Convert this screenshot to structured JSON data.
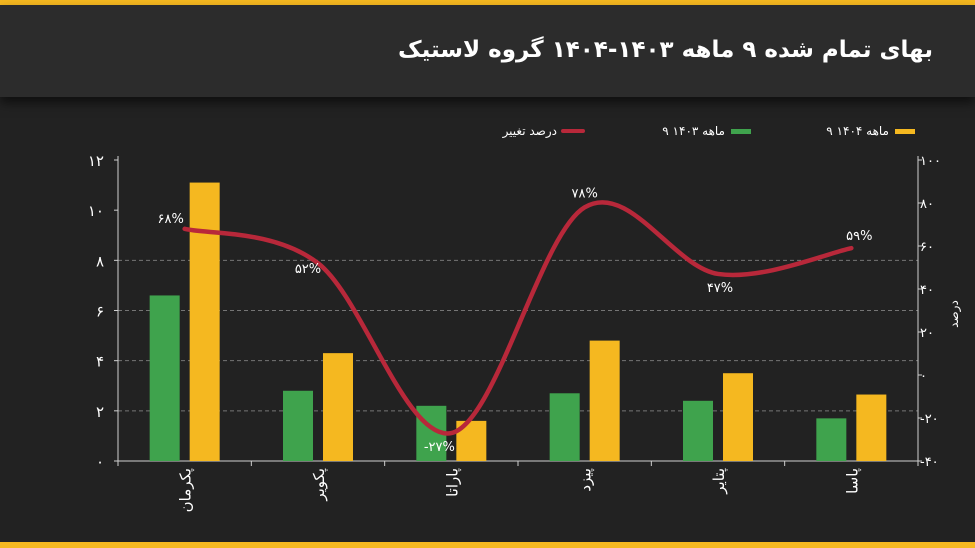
{
  "header": {
    "title": "بهای تمام شده ۹ ماهه ۱۴۰۳-۱۴۰۴ گروه لاستیک"
  },
  "colors": {
    "bar_1403": "#3fa34d",
    "bar_1404": "#f5b820",
    "line": "#b8283a",
    "background": "#222222",
    "header": "#2c2c2c"
  },
  "chart_data": {
    "type": "bar",
    "title": "بهای تمام شده ۹ ماهه ۱۴۰۳-۱۴۰۴ گروه لاستیک",
    "categories": [
      "پکرمان",
      "پکویر",
      "پاراتا",
      "پیزد",
      "پتایر",
      "پاسا"
    ],
    "series": [
      {
        "name": "۹ ماهه ۱۴۰۳",
        "type": "bar",
        "axis": "left",
        "values": [
          6.6,
          2.8,
          2.2,
          2.7,
          2.4,
          1.7
        ]
      },
      {
        "name": "۹ ماهه ۱۴۰۴",
        "type": "bar",
        "axis": "left",
        "values": [
          11.1,
          4.3,
          1.6,
          4.8,
          3.5,
          2.65
        ]
      },
      {
        "name": "درصد تغییر",
        "type": "line",
        "axis": "right",
        "values": [
          68,
          52,
          -27,
          78,
          47,
          59
        ],
        "labels": [
          "۶۸%",
          "۵۲%",
          "-۲۷%",
          "۷۸%",
          "۴۷%",
          "۵۹%"
        ]
      }
    ],
    "y_left": {
      "ylim": [
        0,
        12
      ],
      "ticks": [
        0,
        2,
        4,
        6,
        8,
        10,
        12
      ],
      "tick_labels": [
        "۰",
        "۲",
        "۴",
        "۶",
        "۸",
        "۱۰",
        "۱۲"
      ]
    },
    "y_right": {
      "ylim": [
        -40,
        100
      ],
      "ticks": [
        -40,
        -20,
        0,
        20,
        40,
        60,
        80,
        100
      ],
      "tick_labels": [
        "-۴۰",
        "-۲۰",
        "۰",
        "۲۰",
        "۴۰",
        "۶۰",
        "۸۰",
        "۱۰۰"
      ],
      "label": "درصد"
    },
    "gridlines": [
      2,
      4,
      6,
      8
    ],
    "legend": [
      {
        "name": "۹ ماهه ۱۴۰۴",
        "kind": "bar"
      },
      {
        "name": "۹ ماهه ۱۴۰۳",
        "kind": "bar"
      },
      {
        "name": "درصد تغییر",
        "kind": "line"
      }
    ],
    "legend_position": "top-right"
  }
}
